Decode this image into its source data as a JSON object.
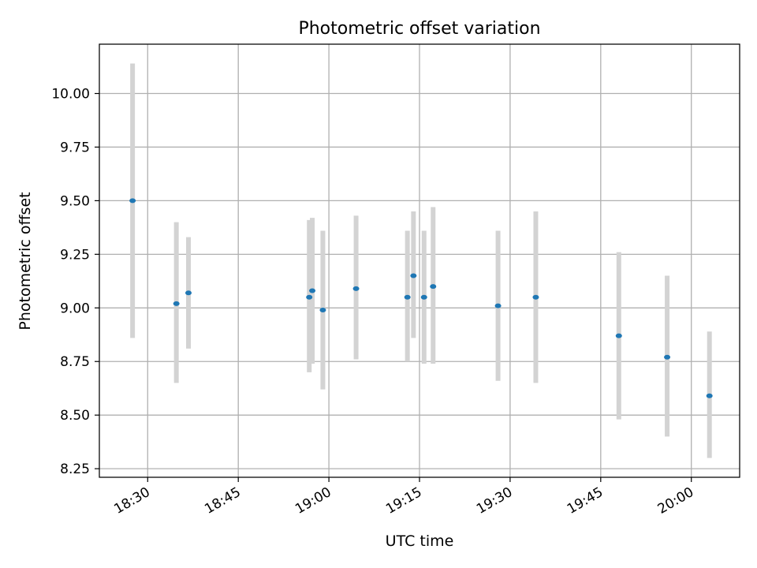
{
  "chart_data": {
    "type": "scatter",
    "title": "Photometric offset variation",
    "xlabel": "UTC time",
    "ylabel": "Photometric offset",
    "grid": true,
    "xlim": [
      "18:22",
      "20:08"
    ],
    "ylim": [
      8.21,
      10.23
    ],
    "x_ticks": [
      "18:30",
      "18:45",
      "19:00",
      "19:15",
      "19:30",
      "19:45",
      "20:00"
    ],
    "y_ticks": [
      "8.25",
      "8.50",
      "8.75",
      "9.00",
      "9.25",
      "9.50",
      "9.75",
      "10.00"
    ],
    "points": [
      {
        "x": "18:27:30",
        "y": 9.5,
        "err_low": 8.86,
        "err_high": 10.14
      },
      {
        "x": "18:34:45",
        "y": 9.02,
        "err_low": 8.65,
        "err_high": 9.4
      },
      {
        "x": "18:36:45",
        "y": 9.07,
        "err_low": 8.81,
        "err_high": 9.33
      },
      {
        "x": "18:56:45",
        "y": 9.05,
        "err_low": 8.7,
        "err_high": 9.41
      },
      {
        "x": "18:57:15",
        "y": 9.08,
        "err_low": 8.74,
        "err_high": 9.42
      },
      {
        "x": "18:59:00",
        "y": 8.99,
        "err_low": 8.62,
        "err_high": 9.36
      },
      {
        "x": "19:04:30",
        "y": 9.09,
        "err_low": 8.76,
        "err_high": 9.43
      },
      {
        "x": "19:13:00",
        "y": 9.05,
        "err_low": 8.75,
        "err_high": 9.36
      },
      {
        "x": "19:14:00",
        "y": 9.15,
        "err_low": 8.86,
        "err_high": 9.45
      },
      {
        "x": "19:15:45",
        "y": 9.05,
        "err_low": 8.74,
        "err_high": 9.36
      },
      {
        "x": "19:17:15",
        "y": 9.1,
        "err_low": 8.74,
        "err_high": 9.47
      },
      {
        "x": "19:28:00",
        "y": 9.01,
        "err_low": 8.66,
        "err_high": 9.36
      },
      {
        "x": "19:34:15",
        "y": 9.05,
        "err_low": 8.65,
        "err_high": 9.45
      },
      {
        "x": "19:48:00",
        "y": 8.87,
        "err_low": 8.48,
        "err_high": 9.26
      },
      {
        "x": "19:56:00",
        "y": 8.77,
        "err_low": 8.4,
        "err_high": 9.15
      },
      {
        "x": "20:03:00",
        "y": 8.59,
        "err_low": 8.3,
        "err_high": 8.89
      }
    ],
    "colors": {
      "marker": "#1f77b4",
      "errorbar": "#d3d3d3",
      "grid": "#b0b0b0",
      "axes": "#000000"
    }
  }
}
